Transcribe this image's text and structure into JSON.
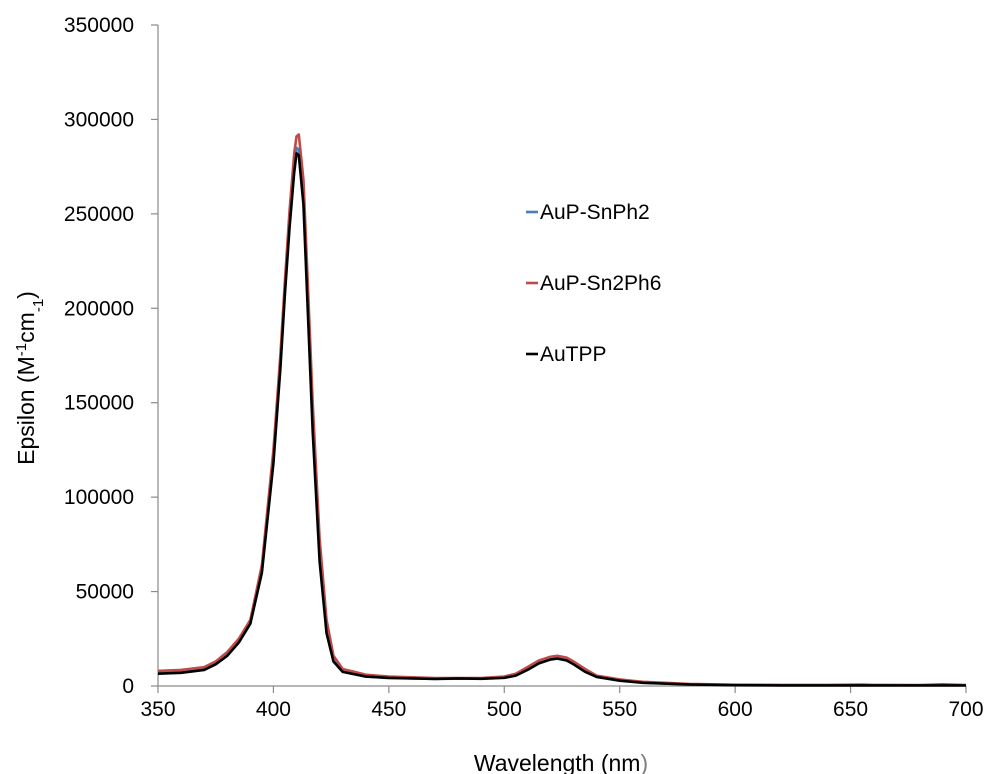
{
  "chart_data": {
    "type": "line",
    "title": "",
    "xlabel": "Wavelength (nm",
    "xlabel_close": ")",
    "ylabel": {
      "base": "Epsilon (M",
      "sup": "-1",
      "mid": "cm",
      "sub": "-1",
      "end": ")"
    },
    "xlim": [
      350,
      700
    ],
    "ylim": [
      0,
      350000
    ],
    "x_ticks": [
      350,
      400,
      450,
      500,
      550,
      600,
      650,
      700
    ],
    "y_ticks": [
      0,
      50000,
      100000,
      150000,
      200000,
      250000,
      300000,
      350000
    ],
    "grid": false,
    "legend_position": "right",
    "series": [
      {
        "name": "AuP-SnPh2",
        "color": "#4a7ebb",
        "points": [
          [
            350,
            7000
          ],
          [
            360,
            7500
          ],
          [
            370,
            9000
          ],
          [
            375,
            12000
          ],
          [
            380,
            17000
          ],
          [
            385,
            24000
          ],
          [
            390,
            34000
          ],
          [
            395,
            62000
          ],
          [
            400,
            120000
          ],
          [
            403,
            170000
          ],
          [
            405,
            210000
          ],
          [
            407,
            245000
          ],
          [
            409,
            275000
          ],
          [
            410,
            285000
          ],
          [
            411,
            284000
          ],
          [
            413,
            260000
          ],
          [
            415,
            200000
          ],
          [
            417,
            140000
          ],
          [
            420,
            70000
          ],
          [
            423,
            30000
          ],
          [
            426,
            14000
          ],
          [
            430,
            8000
          ],
          [
            440,
            5000
          ],
          [
            450,
            4200
          ],
          [
            470,
            3800
          ],
          [
            490,
            3900
          ],
          [
            500,
            4500
          ],
          [
            505,
            6000
          ],
          [
            510,
            9000
          ],
          [
            515,
            12500
          ],
          [
            520,
            14500
          ],
          [
            523,
            15000
          ],
          [
            527,
            14000
          ],
          [
            530,
            12000
          ],
          [
            535,
            8000
          ],
          [
            540,
            5000
          ],
          [
            550,
            3000
          ],
          [
            560,
            1800
          ],
          [
            580,
            800
          ],
          [
            600,
            500
          ],
          [
            620,
            400
          ],
          [
            640,
            400
          ],
          [
            660,
            400
          ],
          [
            680,
            400
          ],
          [
            690,
            600
          ],
          [
            700,
            400
          ]
        ]
      },
      {
        "name": "AuP-Sn2Ph6",
        "color": "#be4b48",
        "points": [
          [
            350,
            8000
          ],
          [
            360,
            8500
          ],
          [
            370,
            10000
          ],
          [
            375,
            13000
          ],
          [
            380,
            18000
          ],
          [
            385,
            25000
          ],
          [
            390,
            35000
          ],
          [
            395,
            64000
          ],
          [
            400,
            125000
          ],
          [
            403,
            175000
          ],
          [
            405,
            215000
          ],
          [
            407,
            252000
          ],
          [
            409,
            282000
          ],
          [
            410,
            291000
          ],
          [
            411,
            292000
          ],
          [
            413,
            268000
          ],
          [
            415,
            210000
          ],
          [
            417,
            150000
          ],
          [
            420,
            78000
          ],
          [
            423,
            35000
          ],
          [
            426,
            16000
          ],
          [
            430,
            9000
          ],
          [
            440,
            6000
          ],
          [
            450,
            5000
          ],
          [
            470,
            4200
          ],
          [
            490,
            4200
          ],
          [
            500,
            5000
          ],
          [
            505,
            6500
          ],
          [
            510,
            10000
          ],
          [
            515,
            13500
          ],
          [
            520,
            15500
          ],
          [
            523,
            16000
          ],
          [
            527,
            15000
          ],
          [
            530,
            13000
          ],
          [
            535,
            9000
          ],
          [
            540,
            5500
          ],
          [
            550,
            3500
          ],
          [
            560,
            2200
          ],
          [
            580,
            1100
          ],
          [
            600,
            700
          ],
          [
            620,
            600
          ],
          [
            640,
            600
          ],
          [
            655,
            800
          ],
          [
            660,
            600
          ],
          [
            680,
            500
          ],
          [
            690,
            900
          ],
          [
            700,
            500
          ]
        ]
      },
      {
        "name": "AuTPP",
        "color": "#000000",
        "points": [
          [
            350,
            6500
          ],
          [
            360,
            7000
          ],
          [
            370,
            8500
          ],
          [
            375,
            11500
          ],
          [
            380,
            16000
          ],
          [
            385,
            23000
          ],
          [
            390,
            33000
          ],
          [
            395,
            60000
          ],
          [
            400,
            118000
          ],
          [
            403,
            168000
          ],
          [
            405,
            208000
          ],
          [
            407,
            243000
          ],
          [
            409,
            272000
          ],
          [
            410,
            282000
          ],
          [
            411,
            281000
          ],
          [
            413,
            255000
          ],
          [
            415,
            195000
          ],
          [
            417,
            135000
          ],
          [
            420,
            66000
          ],
          [
            423,
            28000
          ],
          [
            426,
            13000
          ],
          [
            430,
            7500
          ],
          [
            440,
            5000
          ],
          [
            450,
            4300
          ],
          [
            470,
            3700
          ],
          [
            480,
            4000
          ],
          [
            490,
            3800
          ],
          [
            500,
            4300
          ],
          [
            505,
            5500
          ],
          [
            510,
            8500
          ],
          [
            515,
            12000
          ],
          [
            520,
            14000
          ],
          [
            523,
            14500
          ],
          [
            527,
            13500
          ],
          [
            530,
            11500
          ],
          [
            535,
            7500
          ],
          [
            540,
            4800
          ],
          [
            550,
            2800
          ],
          [
            560,
            1700
          ],
          [
            580,
            800
          ],
          [
            600,
            400
          ],
          [
            620,
            300
          ],
          [
            640,
            300
          ],
          [
            660,
            300
          ],
          [
            680,
            300
          ],
          [
            700,
            300
          ]
        ]
      }
    ]
  }
}
